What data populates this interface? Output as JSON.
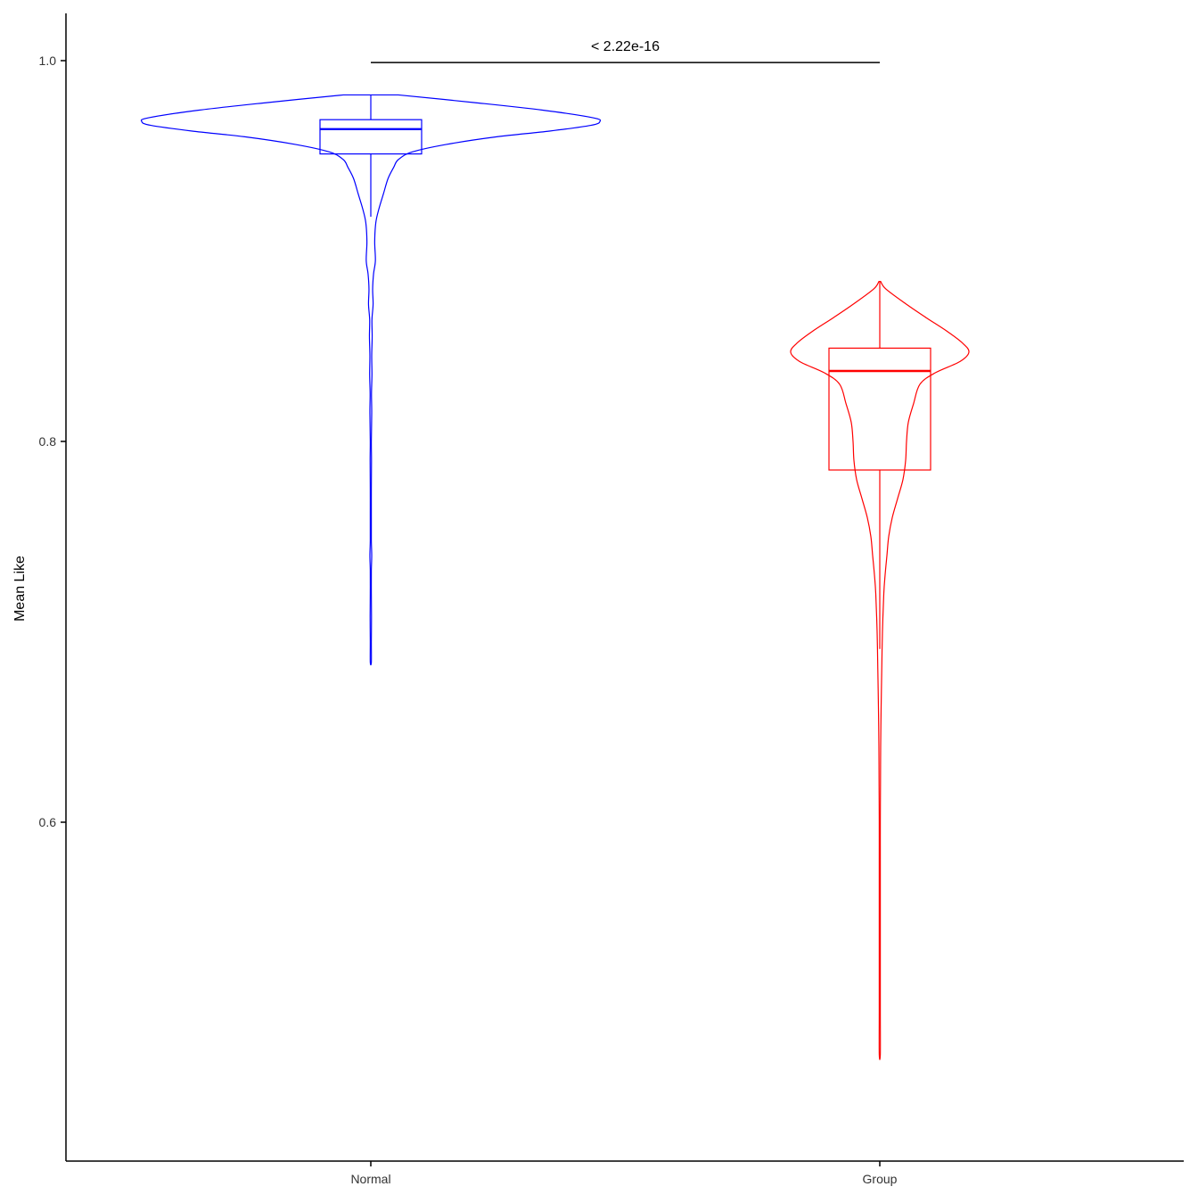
{
  "chart_data": {
    "type": "violin",
    "title": "",
    "xlabel": "",
    "ylabel": "Mean Like",
    "ylim": [
      0.45,
      1.025
    ],
    "y_ticks": [
      0.6,
      0.8,
      1.0
    ],
    "y_tick_labels": [
      "0.6",
      "0.8",
      "1.0"
    ],
    "categories": [
      "Normal",
      "Group"
    ],
    "grid": false,
    "legend": "none",
    "series": [
      {
        "category": "Normal",
        "color": "#0000ff",
        "box": {
          "min": 0.918,
          "q1": 0.951,
          "median": 0.964,
          "q3": 0.969,
          "max": 0.982
        },
        "range": [
          0.684,
          0.982
        ],
        "density": [
          [
            0.982,
            0.12
          ],
          [
            0.978,
            0.45
          ],
          [
            0.974,
            0.75
          ],
          [
            0.97,
            0.97
          ],
          [
            0.968,
            1.0
          ],
          [
            0.966,
            0.96
          ],
          [
            0.963,
            0.78
          ],
          [
            0.96,
            0.55
          ],
          [
            0.956,
            0.33
          ],
          [
            0.952,
            0.18
          ],
          [
            0.948,
            0.12
          ],
          [
            0.944,
            0.1
          ],
          [
            0.938,
            0.075
          ],
          [
            0.93,
            0.055
          ],
          [
            0.922,
            0.035
          ],
          [
            0.915,
            0.022
          ],
          [
            0.905,
            0.017
          ],
          [
            0.895,
            0.02
          ],
          [
            0.888,
            0.012
          ],
          [
            0.88,
            0.008
          ],
          [
            0.872,
            0.01
          ],
          [
            0.864,
            0.005
          ],
          [
            0.855,
            0.006
          ],
          [
            0.845,
            0.004
          ],
          [
            0.835,
            0.005
          ],
          [
            0.825,
            0.003
          ],
          [
            0.815,
            0.004
          ],
          [
            0.8,
            0.002
          ],
          [
            0.79,
            0.003
          ],
          [
            0.775,
            0.002
          ],
          [
            0.76,
            0.002
          ],
          [
            0.748,
            0.001
          ],
          [
            0.74,
            0.004
          ],
          [
            0.732,
            0.002
          ],
          [
            0.72,
            0.002
          ],
          [
            0.708,
            0.003
          ],
          [
            0.695,
            0.002
          ],
          [
            0.684,
            0.002
          ]
        ]
      },
      {
        "category": "Group",
        "color": "#ff0000",
        "box": {
          "min": 0.691,
          "q1": 0.785,
          "median": 0.837,
          "q3": 0.849,
          "max": 0.884
        },
        "range": [
          0.478,
          0.884
        ],
        "density": [
          [
            0.884,
            0.01
          ],
          [
            0.88,
            0.07
          ],
          [
            0.872,
            0.3
          ],
          [
            0.865,
            0.52
          ],
          [
            0.858,
            0.75
          ],
          [
            0.852,
            0.92
          ],
          [
            0.847,
            1.0
          ],
          [
            0.842,
            0.9
          ],
          [
            0.836,
            0.62
          ],
          [
            0.83,
            0.45
          ],
          [
            0.82,
            0.38
          ],
          [
            0.81,
            0.32
          ],
          [
            0.8,
            0.3
          ],
          [
            0.79,
            0.29
          ],
          [
            0.78,
            0.26
          ],
          [
            0.77,
            0.2
          ],
          [
            0.76,
            0.14
          ],
          [
            0.75,
            0.1
          ],
          [
            0.74,
            0.08
          ],
          [
            0.73,
            0.06
          ],
          [
            0.72,
            0.045
          ],
          [
            0.7,
            0.03
          ],
          [
            0.68,
            0.022
          ],
          [
            0.66,
            0.015
          ],
          [
            0.64,
            0.01
          ],
          [
            0.62,
            0.008
          ],
          [
            0.6,
            0.006
          ],
          [
            0.58,
            0.005
          ],
          [
            0.56,
            0.004
          ],
          [
            0.54,
            0.003
          ],
          [
            0.52,
            0.003
          ],
          [
            0.5,
            0.002
          ],
          [
            0.478,
            0.001
          ]
        ]
      }
    ],
    "comparison": {
      "groups": [
        "Normal",
        "Group"
      ],
      "label": "< 2.22e-16",
      "y": 0.999
    }
  }
}
